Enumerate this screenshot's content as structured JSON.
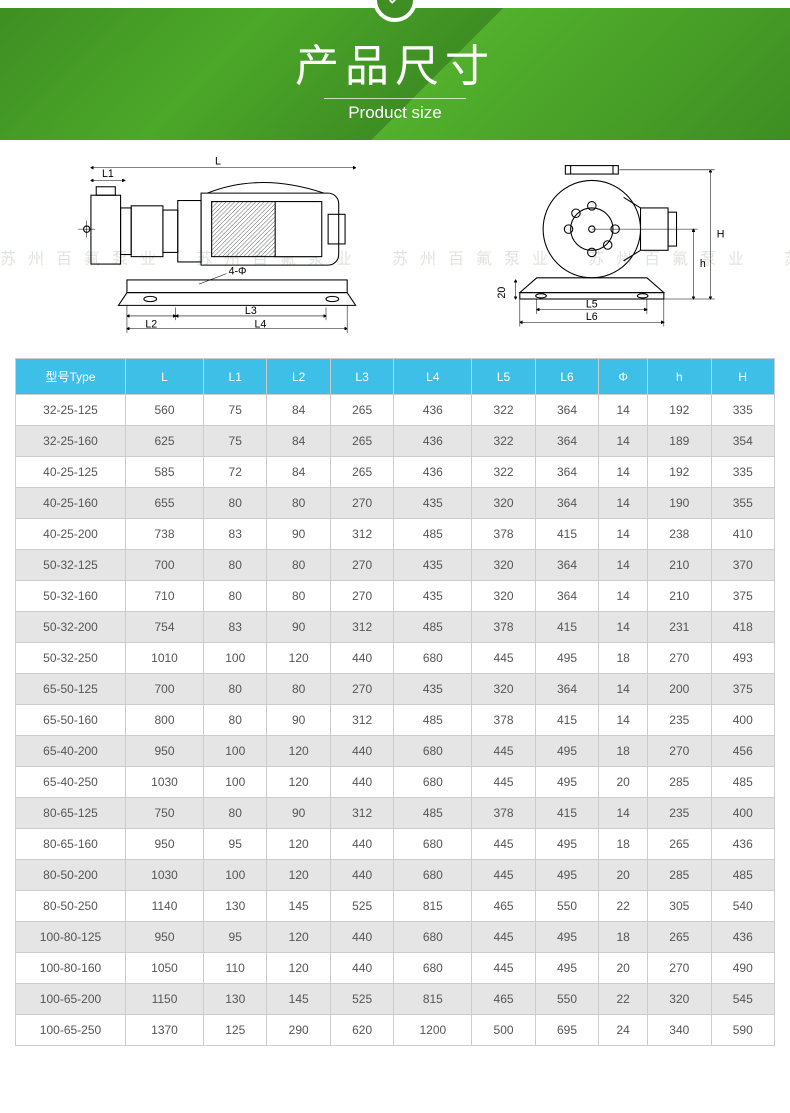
{
  "banner": {
    "title_cn": "产品尺寸",
    "title_en": "Product size",
    "bg_gradient": "linear-gradient(135deg,#3e8e23 0%,#4ca829 30%,#3e8e23 55%,#52b02c 55%,#3e8e23 100%)",
    "text_color": "#ffffff",
    "title_cn_fontsize": 44,
    "title_en_fontsize": 17
  },
  "watermark": {
    "text": "苏州百氟泵业　苏州百氟泵业　苏州百氟泵业　苏州百氟泵业　苏州百氟泵业",
    "color": "#e0e4e0",
    "fontsize": 16
  },
  "diagram": {
    "side_labels": {
      "L": "L",
      "L1": "L1",
      "L2": "L2",
      "L3": "L3",
      "L4": "L4",
      "bolt": "4-Φ"
    },
    "front_labels": {
      "L5": "L5",
      "L6": "L6",
      "twenty": "20",
      "h": "h",
      "H": "H"
    }
  },
  "table": {
    "header_bg": "#3dbfe8",
    "header_color": "#ffffff",
    "row_even_bg": "#e5e5e5",
    "row_odd_bg": "#ffffff",
    "border_color": "#cccccc",
    "fontsize": 12,
    "columns": [
      "型号Type",
      "L",
      "L1",
      "L2",
      "L3",
      "L4",
      "L5",
      "L6",
      "Φ",
      "h",
      "H"
    ],
    "rows": [
      [
        "32-25-125",
        "560",
        "75",
        "84",
        "265",
        "436",
        "322",
        "364",
        "14",
        "192",
        "335"
      ],
      [
        "32-25-160",
        "625",
        "75",
        "84",
        "265",
        "436",
        "322",
        "364",
        "14",
        "189",
        "354"
      ],
      [
        "40-25-125",
        "585",
        "72",
        "84",
        "265",
        "436",
        "322",
        "364",
        "14",
        "192",
        "335"
      ],
      [
        "40-25-160",
        "655",
        "80",
        "80",
        "270",
        "435",
        "320",
        "364",
        "14",
        "190",
        "355"
      ],
      [
        "40-25-200",
        "738",
        "83",
        "90",
        "312",
        "485",
        "378",
        "415",
        "14",
        "238",
        "410"
      ],
      [
        "50-32-125",
        "700",
        "80",
        "80",
        "270",
        "435",
        "320",
        "364",
        "14",
        "210",
        "370"
      ],
      [
        "50-32-160",
        "710",
        "80",
        "80",
        "270",
        "435",
        "320",
        "364",
        "14",
        "210",
        "375"
      ],
      [
        "50-32-200",
        "754",
        "83",
        "90",
        "312",
        "485",
        "378",
        "415",
        "14",
        "231",
        "418"
      ],
      [
        "50-32-250",
        "1010",
        "100",
        "120",
        "440",
        "680",
        "445",
        "495",
        "18",
        "270",
        "493"
      ],
      [
        "65-50-125",
        "700",
        "80",
        "80",
        "270",
        "435",
        "320",
        "364",
        "14",
        "200",
        "375"
      ],
      [
        "65-50-160",
        "800",
        "80",
        "90",
        "312",
        "485",
        "378",
        "415",
        "14",
        "235",
        "400"
      ],
      [
        "65-40-200",
        "950",
        "100",
        "120",
        "440",
        "680",
        "445",
        "495",
        "18",
        "270",
        "456"
      ],
      [
        "65-40-250",
        "1030",
        "100",
        "120",
        "440",
        "680",
        "445",
        "495",
        "20",
        "285",
        "485"
      ],
      [
        "80-65-125",
        "750",
        "80",
        "90",
        "312",
        "485",
        "378",
        "415",
        "14",
        "235",
        "400"
      ],
      [
        "80-65-160",
        "950",
        "95",
        "120",
        "440",
        "680",
        "445",
        "495",
        "18",
        "265",
        "436"
      ],
      [
        "80-50-200",
        "1030",
        "100",
        "120",
        "440",
        "680",
        "445",
        "495",
        "20",
        "285",
        "485"
      ],
      [
        "80-50-250",
        "1140",
        "130",
        "145",
        "525",
        "815",
        "465",
        "550",
        "22",
        "305",
        "540"
      ],
      [
        "100-80-125",
        "950",
        "95",
        "120",
        "440",
        "680",
        "445",
        "495",
        "18",
        "265",
        "436"
      ],
      [
        "100-80-160",
        "1050",
        "110",
        "120",
        "440",
        "680",
        "445",
        "495",
        "20",
        "270",
        "490"
      ],
      [
        "100-65-200",
        "1150",
        "130",
        "145",
        "525",
        "815",
        "465",
        "550",
        "22",
        "320",
        "545"
      ],
      [
        "100-65-250",
        "1370",
        "125",
        "290",
        "620",
        "1200",
        "500",
        "695",
        "24",
        "340",
        "590"
      ]
    ]
  }
}
